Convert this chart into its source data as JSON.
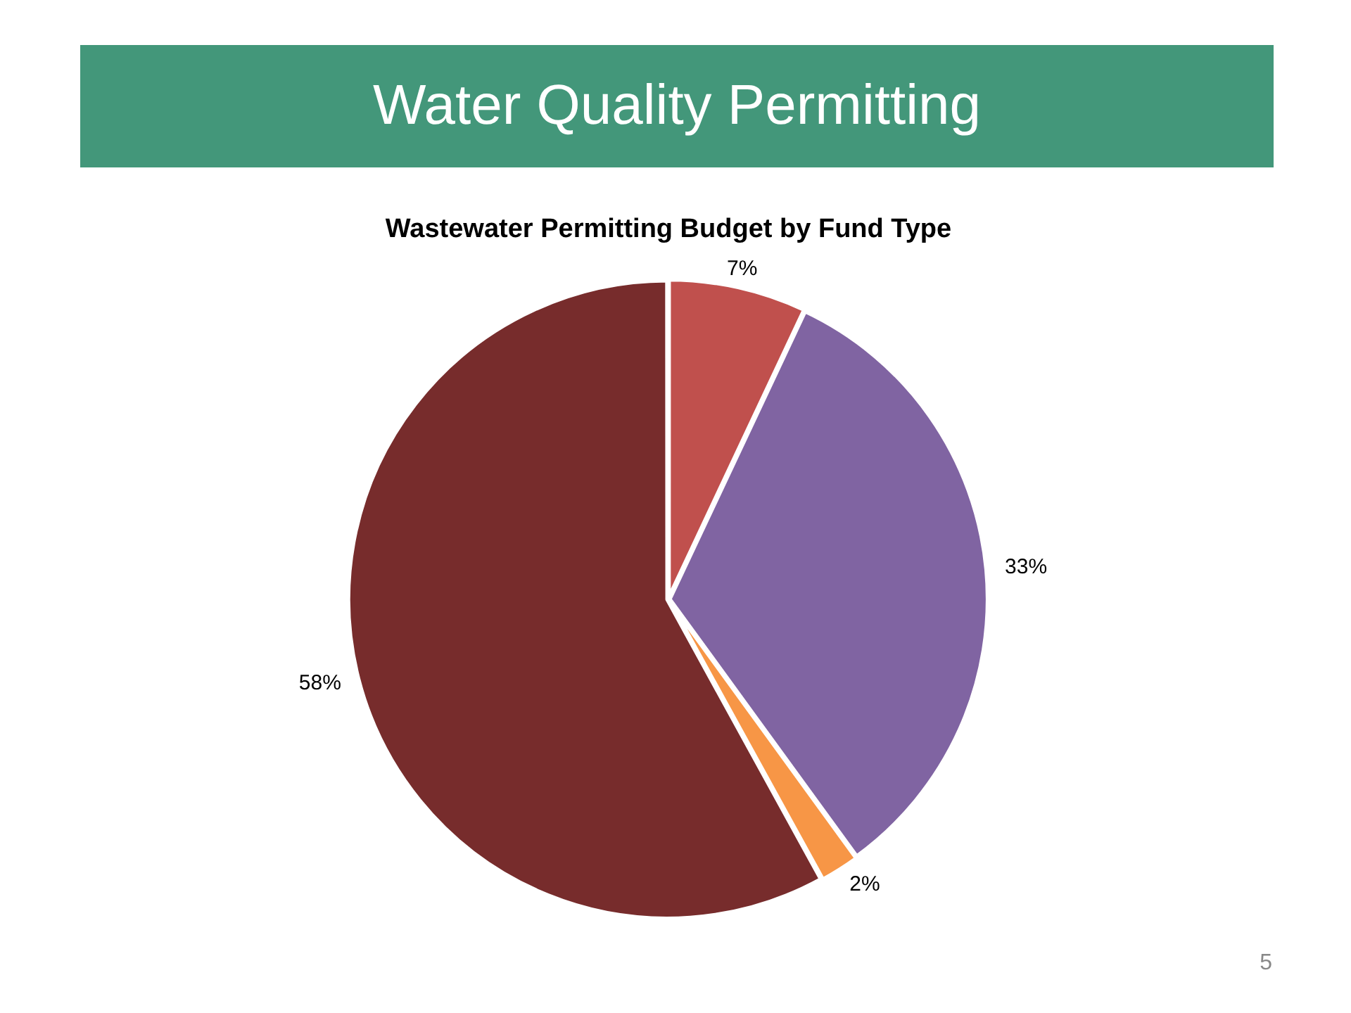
{
  "chart_data": {
    "type": "pie",
    "title": "Water Quality Permitting",
    "subtitle": "Wastewater Permitting Budget by Fund Type",
    "categories": [
      null,
      null,
      null,
      null
    ],
    "values": [
      7,
      33,
      2,
      58
    ],
    "colors": [
      "#c0504d",
      "#8064a2",
      "#f79646",
      "#772c2c"
    ],
    "value_labels": [
      "7%",
      "33%",
      "2%",
      "58%"
    ],
    "legend": false,
    "annotations": [
      "5"
    ]
  }
}
